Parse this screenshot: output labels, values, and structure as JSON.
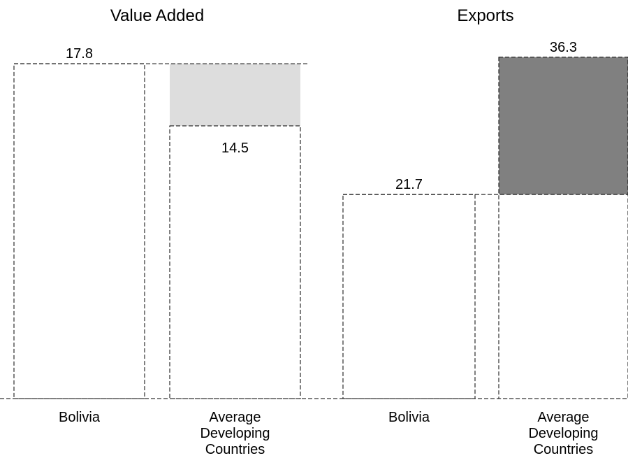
{
  "chart_data": [
    {
      "type": "bar",
      "title": "Value Added",
      "categories": [
        "Bolivia",
        "Average Developing Countries"
      ],
      "values": [
        17.8,
        14.5
      ],
      "color": "#dddddd",
      "ylim": [
        0,
        20
      ]
    },
    {
      "type": "bar",
      "title": "Exports",
      "categories": [
        "Bolivia",
        "Average Developing Countries"
      ],
      "values": [
        21.7,
        36.3
      ],
      "color": "#808080",
      "ylim": [
        0,
        40
      ]
    }
  ]
}
